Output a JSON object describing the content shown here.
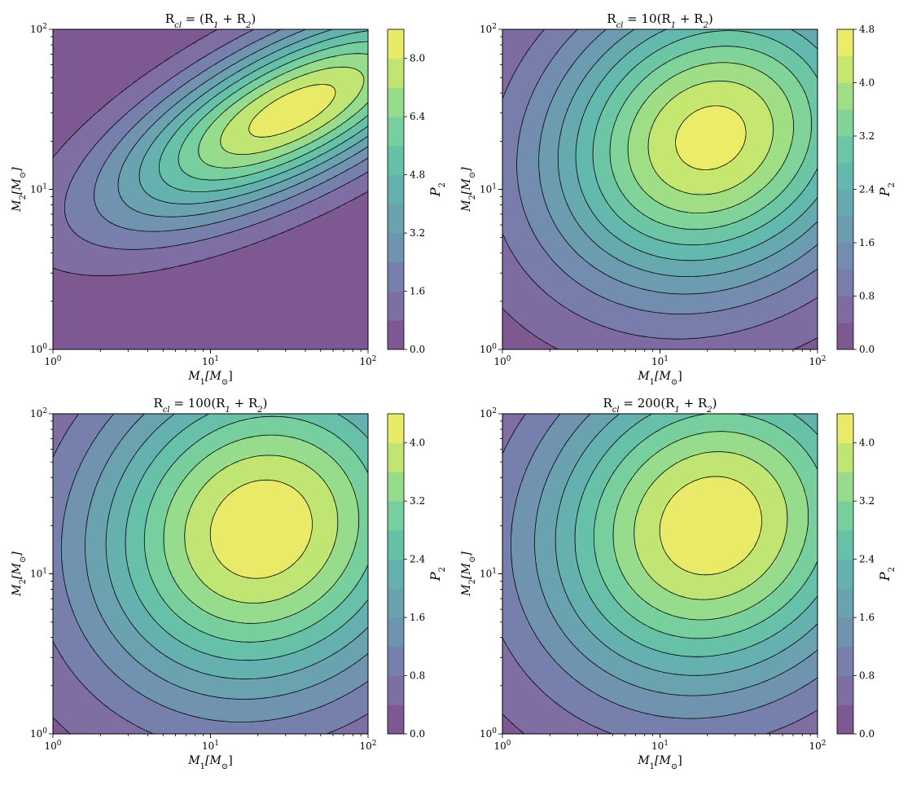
{
  "chart_data": [
    {
      "type": "heatmap",
      "title": "R_cl = (R_1 + R_2)",
      "title_parts": [
        "R",
        "cl",
        " = (R",
        "1",
        " + R",
        "2",
        ")"
      ],
      "xlabel": "M_1[M_⊙]",
      "ylabel": "M_2[M_⊙]",
      "x_scale": "log",
      "y_scale": "log",
      "xlim": [
        1,
        100
      ],
      "ylim": [
        1,
        100
      ],
      "x_ticks": [
        "10^0",
        "10^1",
        "10^2"
      ],
      "y_ticks": [
        "10^0",
        "10^1",
        "10^2"
      ],
      "colorbar_label": "P_2",
      "colorbar_ticks": [
        "0.0",
        "1.6",
        "3.2",
        "4.8",
        "6.4",
        "8.0"
      ],
      "colorbar_tick_values": [
        0.0,
        1.6,
        3.2,
        4.8,
        6.4,
        8.0
      ],
      "levels": [
        0.0,
        0.8,
        1.6,
        2.4,
        3.2,
        4.0,
        4.8,
        5.6,
        6.4,
        7.2,
        8.0,
        8.8
      ],
      "peak": {
        "m1": 33,
        "m2": 31,
        "value": 8.5
      },
      "width_m1_dex": 1.0,
      "width_m2_dex": 0.6,
      "correlation": 0.7
    },
    {
      "type": "heatmap",
      "title": "R_cl = 10(R_1 + R_2)",
      "title_parts": [
        "R",
        "cl",
        " = 10(R",
        "1",
        " + R",
        "2",
        ")"
      ],
      "xlabel": "M_1[M_⊙]",
      "ylabel": "M_2[M_⊙]",
      "x_scale": "log",
      "y_scale": "log",
      "xlim": [
        1,
        100
      ],
      "ylim": [
        1,
        100
      ],
      "x_ticks": [
        "10^0",
        "10^1",
        "10^2"
      ],
      "y_ticks": [
        "10^0",
        "10^1",
        "10^2"
      ],
      "colorbar_label": "P_2",
      "colorbar_ticks": [
        "0.0",
        "0.8",
        "1.6",
        "2.4",
        "3.2",
        "4.0",
        "4.8"
      ],
      "colorbar_tick_values": [
        0.0,
        0.8,
        1.6,
        2.4,
        3.2,
        4.0,
        4.8
      ],
      "levels": [
        0.0,
        0.4,
        0.8,
        1.2,
        1.6,
        2.0,
        2.4,
        2.8,
        3.2,
        3.6,
        4.0,
        4.4,
        4.8
      ],
      "peak": {
        "m1": 21,
        "m2": 21,
        "value": 4.6
      },
      "width_m1_dex": 0.95,
      "width_m2_dex": 0.85,
      "correlation": 0.15
    },
    {
      "type": "heatmap",
      "title": "R_cl = 100(R_1 + R_2)",
      "title_parts": [
        "R",
        "cl",
        " = 100(R",
        "1",
        " + R",
        "2",
        ")"
      ],
      "xlabel": "M_1[M_⊙]",
      "ylabel": "M_2[M_⊙]",
      "x_scale": "log",
      "y_scale": "log",
      "xlim": [
        1,
        100
      ],
      "ylim": [
        1,
        100
      ],
      "x_ticks": [
        "10^0",
        "10^1",
        "10^2"
      ],
      "y_ticks": [
        "10^0",
        "10^1",
        "10^2"
      ],
      "colorbar_label": "P_2",
      "colorbar_ticks": [
        "0.0",
        "0.8",
        "1.6",
        "2.4",
        "3.2",
        "4.0"
      ],
      "colorbar_tick_values": [
        0.0,
        0.8,
        1.6,
        2.4,
        3.2,
        4.0
      ],
      "levels": [
        0.0,
        0.4,
        0.8,
        1.2,
        1.6,
        2.0,
        2.4,
        2.8,
        3.2,
        3.6,
        4.0,
        4.4
      ],
      "peak": {
        "m1": 21,
        "m2": 19,
        "value": 4.35
      },
      "width_m1_dex": 1.0,
      "width_m2_dex": 0.95,
      "correlation": 0.1
    },
    {
      "type": "heatmap",
      "title": "R_cl = 200(R_1 + R_2)",
      "title_parts": [
        "R",
        "cl",
        " = 200(R",
        "1",
        " + R",
        "2",
        ")"
      ],
      "xlabel": "M_1[M_⊙]",
      "ylabel": "M_2[M_⊙]",
      "x_scale": "log",
      "y_scale": "log",
      "xlim": [
        1,
        100
      ],
      "ylim": [
        1,
        100
      ],
      "x_ticks": [
        "10^0",
        "10^1",
        "10^2"
      ],
      "y_ticks": [
        "10^0",
        "10^1",
        "10^2"
      ],
      "colorbar_label": "P_2",
      "colorbar_ticks": [
        "0.0",
        "0.8",
        "1.6",
        "2.4",
        "3.2",
        "4.0"
      ],
      "colorbar_tick_values": [
        0.0,
        0.8,
        1.6,
        2.4,
        3.2,
        4.0
      ],
      "levels": [
        0.0,
        0.4,
        0.8,
        1.2,
        1.6,
        2.0,
        2.4,
        2.8,
        3.2,
        3.6,
        4.0,
        4.4
      ],
      "peak": {
        "m1": 21,
        "m2": 20,
        "value": 4.35
      },
      "width_m1_dex": 1.0,
      "width_m2_dex": 0.95,
      "correlation": 0.1
    }
  ],
  "colormap": [
    "#440154",
    "#482878",
    "#3e4989",
    "#31688e",
    "#26828e",
    "#1f9e89",
    "#35b779",
    "#6ece58",
    "#b5de2b",
    "#fde725"
  ],
  "alpha": 0.7
}
